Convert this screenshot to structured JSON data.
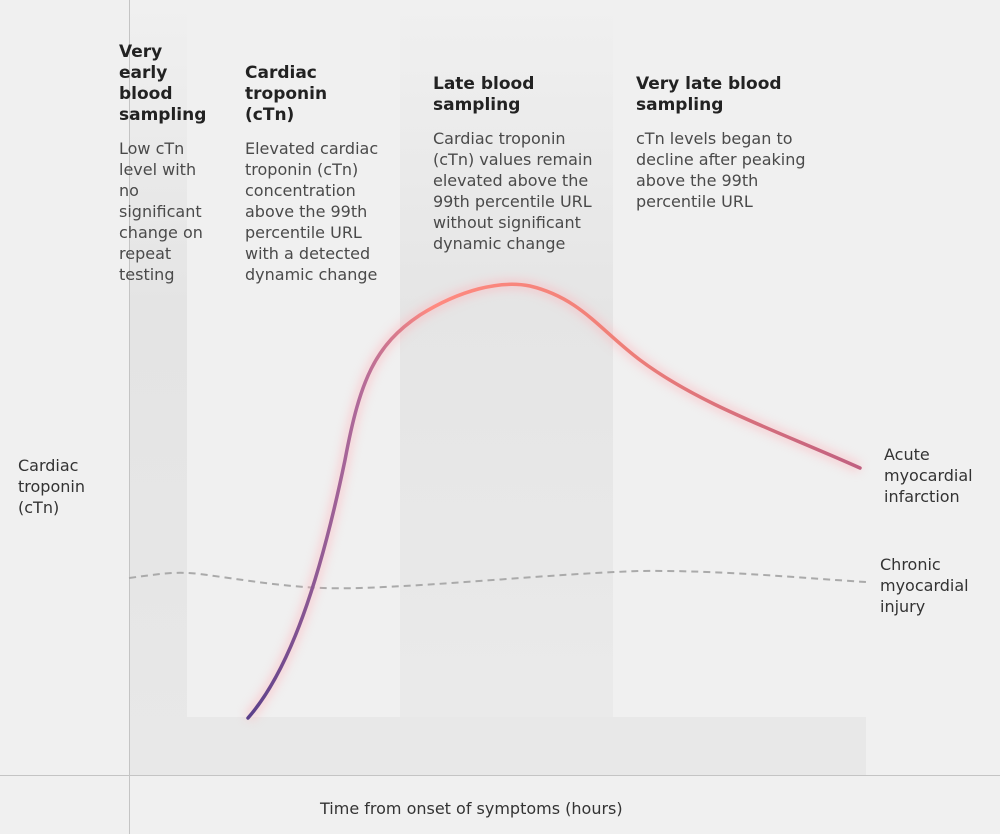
{
  "phases": [
    {
      "heading": "Very early blood sampling",
      "description": "Low cTn level with no significant change on repeat testing"
    },
    {
      "heading": "Cardiac troponin (cTn)",
      "description": "Elevated cardiac troponin (cTn) concentration above the 99th percentile URL with a detected dynamic change"
    },
    {
      "heading": "Late blood sampling",
      "description": "Cardiac troponin (cTn) values remain elevated above the 99th percentile URL without significant dynamic change"
    },
    {
      "heading": "Very late blood sampling",
      "description": "cTn levels began to decline after peaking above the 99th percentile URL"
    }
  ],
  "axes": {
    "y_label": "Cardiac troponin (cTn)",
    "x_label": "Time from onset of symptoms (hours)"
  },
  "curves": {
    "acute": {
      "label": "Acute myocardial infarction",
      "color_start": "#5a3f8a",
      "color_peak": "#ff8a80",
      "color_end": "#c06080"
    },
    "chronic": {
      "label": "Chronic myocardial injury",
      "color": "#aaaaaa",
      "style": "dashed"
    }
  }
}
